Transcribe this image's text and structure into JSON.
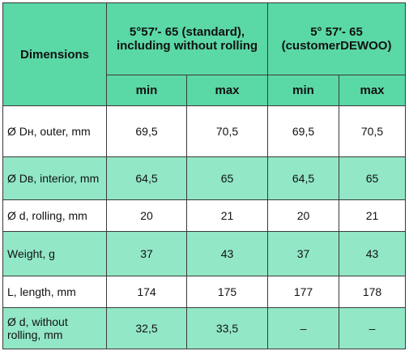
{
  "table": {
    "header": {
      "dimensions": "Dimensions",
      "groups": [
        "5°57′- 65 (standard),\nincluding without rolling",
        "5° 57′- 65\n(customerDEWOO)"
      ],
      "subheaders": [
        "min",
        "max",
        "min",
        "max"
      ]
    },
    "rows": [
      [
        "Ø Dн, outer, mm",
        "69,5",
        "70,5",
        "69,5",
        "70,5"
      ],
      [
        "Ø Dв, interior, mm",
        "64,5",
        "65",
        "64,5",
        "65"
      ],
      [
        "Ø d, rolling, mm",
        "20",
        "21",
        "20",
        "21"
      ],
      [
        "Weight, g",
        "37",
        "43",
        "37",
        "43"
      ],
      [
        "L, length, mm",
        "174",
        "175",
        "177",
        "178"
      ],
      [
        "Ø d, without rolling, mm",
        "32,5",
        "33,5",
        "–",
        "–"
      ]
    ]
  }
}
